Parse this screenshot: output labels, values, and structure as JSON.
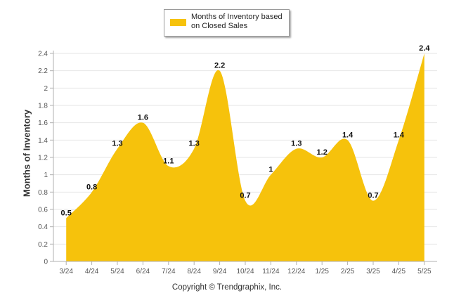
{
  "legend": {
    "label": "Months of Inventory based on Closed Sales",
    "color": "#f6c20c"
  },
  "footer": {
    "text": "Copyright © Trendgraphix, Inc."
  },
  "chart_data": {
    "type": "area",
    "title": "",
    "xlabel": "",
    "ylabel": "Months of Inventory",
    "categories": [
      "3/24",
      "4/24",
      "5/24",
      "6/24",
      "7/24",
      "8/24",
      "9/24",
      "10/24",
      "11/24",
      "12/24",
      "1/25",
      "2/25",
      "3/25",
      "4/25",
      "5/25"
    ],
    "series": [
      {
        "name": "Months of Inventory based on Closed Sales",
        "values": [
          0.5,
          0.8,
          1.3,
          1.6,
          1.1,
          1.3,
          2.2,
          0.7,
          1,
          1.3,
          1.2,
          1.4,
          0.7,
          1.4,
          2.4
        ],
        "data_labels": [
          "0.5",
          "0.8",
          "1.3",
          "1.6",
          "1.1",
          "1.3",
          "2.2",
          "0.7",
          "1",
          "1.3",
          "1.2",
          "1.4",
          "0.7",
          "1.4",
          "2.4"
        ]
      }
    ],
    "y_ticks": [
      "0",
      "0.2",
      "0.4",
      "0.6",
      "0.8",
      "1",
      "1.2",
      "1.4",
      "1.6",
      "1.8",
      "2",
      "2.2",
      "2.4"
    ],
    "ylim": [
      0,
      2.4
    ],
    "grid": "horizontal",
    "legend_position": "top-center",
    "colors": {
      "fill": "#f6c20c",
      "grid": "#e6e6e6",
      "axis": "#b0b0b0"
    }
  }
}
